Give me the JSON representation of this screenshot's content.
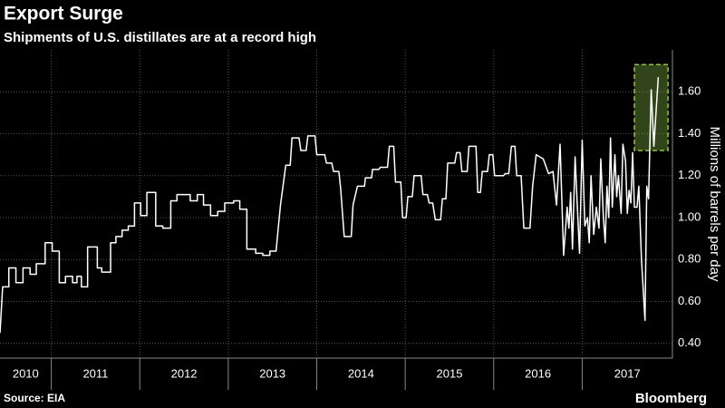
{
  "chart_data": {
    "type": "line",
    "title": "Export Surge",
    "subtitle": "Shipments of U.S. distillates are at a record high",
    "y_label": "Millions of barrels per day",
    "source": "Source: EIA",
    "brand": "Bloomberg",
    "color": "#ffffff",
    "grid": true,
    "x": [
      2010.42,
      2010.45,
      2010.52,
      2010.52,
      2010.6,
      2010.6,
      2010.68,
      2010.68,
      2010.76,
      2010.76,
      2010.83,
      2010.83,
      2010.93,
      2010.93,
      2011.01,
      2011.01,
      2011.09,
      2011.09,
      2011.16,
      2011.16,
      2011.24,
      2011.24,
      2011.29,
      2011.29,
      2011.34,
      2011.34,
      2011.41,
      2011.41,
      2011.52,
      2011.52,
      2011.57,
      2011.57,
      2011.67,
      2011.67,
      2011.73,
      2011.73,
      2011.8,
      2011.8,
      2011.87,
      2011.87,
      2011.94,
      2011.94,
      2012.01,
      2012.01,
      2012.08,
      2012.08,
      2012.18,
      2012.18,
      2012.26,
      2012.26,
      2012.35,
      2012.35,
      2012.42,
      2012.42,
      2012.57,
      2012.57,
      2012.65,
      2012.65,
      2012.72,
      2012.72,
      2012.8,
      2012.8,
      2012.88,
      2012.88,
      2012.96,
      2012.96,
      2013.06,
      2013.06,
      2013.13,
      2013.13,
      2013.21,
      2013.21,
      2013.31,
      2013.31,
      2013.39,
      2013.39,
      2013.47,
      2013.47,
      2013.54,
      2013.59,
      2013.65,
      2013.7,
      2013.72,
      2013.8,
      2013.82,
      2013.88,
      2013.9,
      2013.98,
      2014.0,
      2014.09,
      2014.11,
      2014.17,
      2014.19,
      2014.25,
      2014.27,
      2014.31,
      2014.39,
      2014.41,
      2014.46,
      2014.54,
      2014.55,
      2014.62,
      2014.63,
      2014.7,
      2014.72,
      2014.8,
      2014.82,
      2014.87,
      2014.89,
      2014.95,
      2014.97,
      2015.01,
      2015.03,
      2015.08,
      2015.1,
      2015.18,
      2015.2,
      2015.25,
      2015.27,
      2015.31,
      2015.34,
      2015.4,
      2015.42,
      2015.46,
      2015.48,
      2015.56,
      2015.58,
      2015.62,
      2015.64,
      2015.7,
      2015.72,
      2015.8,
      2015.82,
      2015.85,
      2015.87,
      2015.93,
      2015.95,
      2015.99,
      2016.01,
      2016.11,
      2016.13,
      2016.17,
      2016.2,
      2016.24,
      2016.26,
      2016.31,
      2016.34,
      2016.41,
      2016.44,
      2016.48,
      2016.56,
      2016.62,
      2016.67,
      2016.71,
      2016.75,
      2016.79,
      2016.83,
      2016.85,
      2016.87,
      2016.89,
      2016.92,
      2016.94,
      2016.97,
      2017.0,
      2017.03,
      2017.06,
      2017.08,
      2017.1,
      2017.13,
      2017.16,
      2017.19,
      2017.21,
      2017.24,
      2017.26,
      2017.28,
      2017.3,
      2017.32,
      2017.34,
      2017.37,
      2017.39,
      2017.41,
      2017.44,
      2017.46,
      2017.49,
      2017.51,
      2017.53,
      2017.55,
      2017.57,
      2017.59,
      2017.62,
      2017.64,
      2017.67,
      2017.71,
      2017.73,
      2017.75,
      2017.78,
      2017.81,
      2017.86
    ],
    "values": [
      0.45,
      0.67,
      0.67,
      0.76,
      0.76,
      0.69,
      0.69,
      0.76,
      0.76,
      0.73,
      0.73,
      0.78,
      0.78,
      0.88,
      0.88,
      0.84,
      0.84,
      0.69,
      0.69,
      0.72,
      0.72,
      0.69,
      0.69,
      0.72,
      0.72,
      0.67,
      0.67,
      0.86,
      0.86,
      0.76,
      0.76,
      0.74,
      0.74,
      0.88,
      0.88,
      0.91,
      0.91,
      0.94,
      0.94,
      0.96,
      0.96,
      1.07,
      1.07,
      1.01,
      1.01,
      1.12,
      1.12,
      0.96,
      0.96,
      0.95,
      0.95,
      1.08,
      1.08,
      1.11,
      1.11,
      1.08,
      1.08,
      1.11,
      1.11,
      1.06,
      1.06,
      1.01,
      1.01,
      1.03,
      1.03,
      1.07,
      1.07,
      1.08,
      1.08,
      1.04,
      1.04,
      0.85,
      0.85,
      0.83,
      0.83,
      0.82,
      0.82,
      0.84,
      0.84,
      1.06,
      1.25,
      1.25,
      1.38,
      1.38,
      1.32,
      1.32,
      1.39,
      1.39,
      1.3,
      1.3,
      1.26,
      1.26,
      1.22,
      1.22,
      1.14,
      0.91,
      0.91,
      1.06,
      1.15,
      1.15,
      1.19,
      1.19,
      1.23,
      1.23,
      1.24,
      1.24,
      1.34,
      1.34,
      1.17,
      1.17,
      1.0,
      1.0,
      1.1,
      1.1,
      1.2,
      1.2,
      1.11,
      1.11,
      1.07,
      1.07,
      0.99,
      0.99,
      1.09,
      1.09,
      1.26,
      1.26,
      1.31,
      1.31,
      1.22,
      1.22,
      1.34,
      1.34,
      1.12,
      1.12,
      1.22,
      1.22,
      1.3,
      1.3,
      1.2,
      1.2,
      1.21,
      1.21,
      1.34,
      1.34,
      1.2,
      1.2,
      0.95,
      0.95,
      1.15,
      1.3,
      1.28,
      1.21,
      1.22,
      1.06,
      1.35,
      0.82,
      1.05,
      0.95,
      1.12,
      0.85,
      1.29,
      1.1,
      0.83,
      1.37,
      0.96,
      1.0,
      0.88,
      1.2,
      0.92,
      1.05,
      0.95,
      1.28,
      1.0,
      0.88,
      1.15,
      1.0,
      1.38,
      1.05,
      1.3,
      1.1,
      1.2,
      1.02,
      1.35,
      1.27,
      1.02,
      1.13,
      1.07,
      1.31,
      1.05,
      1.05,
      1.15,
      0.8,
      0.51,
      1.15,
      1.09,
      1.61,
      1.34,
      1.67
    ],
    "xlim": [
      2010.42,
      2018.02
    ],
    "xticks": [
      2011,
      2012,
      2013,
      2014,
      2015,
      2016,
      2017
    ],
    "x_labels": [
      "2010",
      "2011",
      "2012",
      "2013",
      "2014",
      "2015",
      "2016",
      "2017"
    ],
    "ylim": [
      0.33,
      1.8
    ],
    "yticks": [
      {
        "value": 0.4,
        "label": "0.40"
      },
      {
        "value": 0.6,
        "label": "0.60"
      },
      {
        "value": 0.8,
        "label": "0.80"
      },
      {
        "value": 1.0,
        "label": "1.00"
      },
      {
        "value": 1.2,
        "label": "1.20"
      },
      {
        "value": 1.4,
        "label": "1.40"
      },
      {
        "value": 1.6,
        "label": "1.60"
      }
    ],
    "highlight": {
      "x": [
        2017.59,
        2017.97
      ],
      "y": [
        1.32,
        1.73
      ],
      "color": "#8bc34a"
    }
  }
}
